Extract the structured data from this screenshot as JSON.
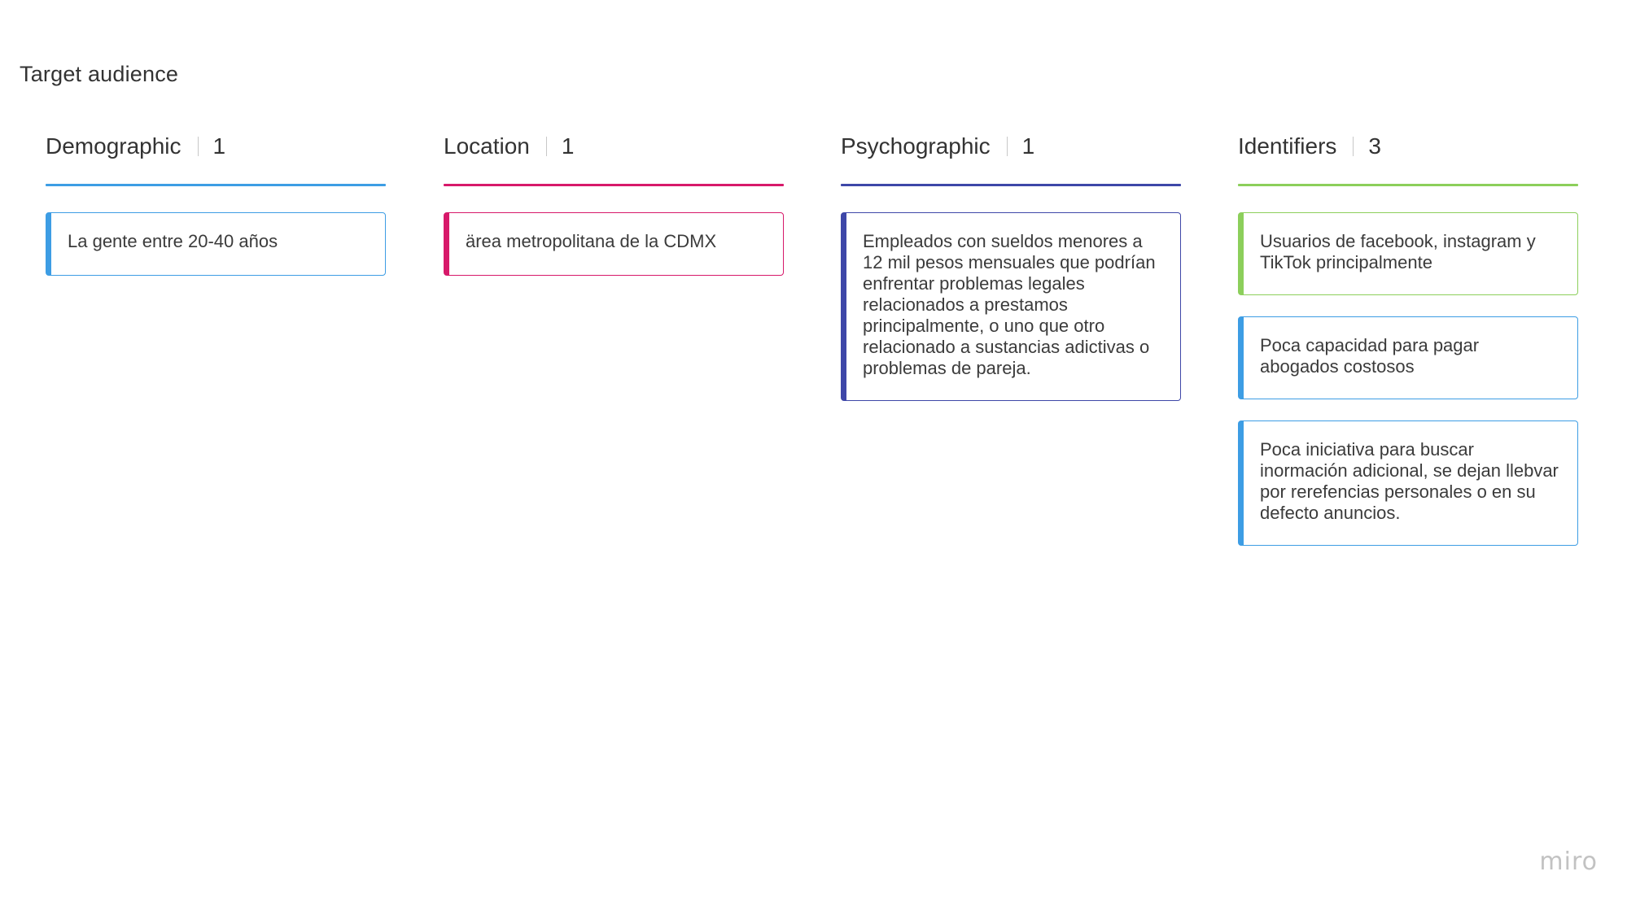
{
  "board": {
    "title": "Target audience",
    "logo": "miro"
  },
  "columns": [
    {
      "title": "Demographic",
      "count": "1",
      "color": "#3d9de4",
      "cards": [
        {
          "text": "La gente entre 20-40 años",
          "color": "#3d9de4"
        }
      ]
    },
    {
      "title": "Location",
      "count": "1",
      "color": "#d7196a",
      "cards": [
        {
          "text": "ärea metropolitana de la CDMX",
          "color": "#d7196a"
        }
      ]
    },
    {
      "title": "Psychographic",
      "count": "1",
      "color": "#3e47a8",
      "cards": [
        {
          "text": "Empleados con sueldos menores a 12 mil pesos mensuales que podrían enfrentar problemas legales relacionados a prestamos principalmente, o uno que otro relacionado a sustancias adictivas o problemas de pareja.",
          "color": "#3e47a8"
        }
      ]
    },
    {
      "title": "Identifiers",
      "count": "3",
      "color": "#8ccf5b",
      "cards": [
        {
          "text": "Usuarios de facebook, instagram y TikTok principalmente",
          "color": "#8ccf5b"
        },
        {
          "text": "Poca capacidad para pagar abogados costosos",
          "color": "#3d9de4"
        },
        {
          "text": "Poca iniciativa para buscar inormación adicional, se dejan llebvar por rerefencias personales o en su defecto anuncios.",
          "color": "#3d9de4"
        }
      ]
    }
  ]
}
